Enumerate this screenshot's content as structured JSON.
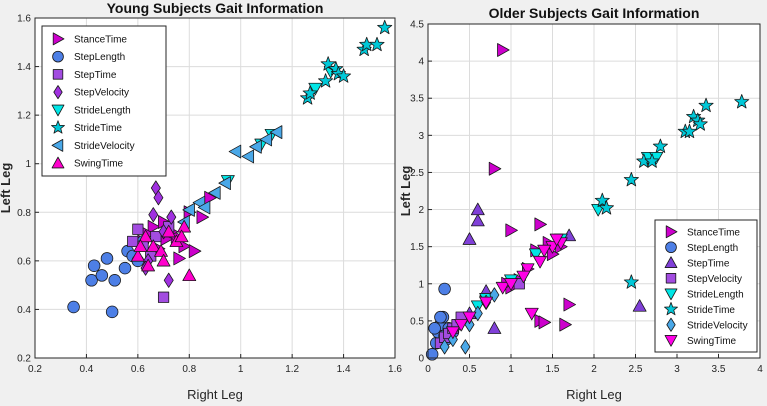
{
  "chart_data": [
    {
      "type": "scatter",
      "title": "Young Subjects Gait Information",
      "xlabel": "Right Leg",
      "ylabel": "Left Leg",
      "xlim": [
        0.2,
        1.6
      ],
      "ylim": [
        0.2,
        1.6
      ],
      "xticks": [
        "0.2",
        "0.4",
        "0.6",
        "0.8",
        "1",
        "1.2",
        "1.4",
        "1.6"
      ],
      "yticks": [
        "0.2",
        "0.4",
        "0.6",
        "0.8",
        "1",
        "1.2",
        "1.4",
        "1.6"
      ],
      "grid": true,
      "legend_position": "top-left",
      "series": [
        {
          "name": "StanceTime",
          "marker": "triangle-right",
          "color": "#cc00cc",
          "points": [
            [
              0.62,
              0.68
            ],
            [
              0.66,
              0.74
            ],
            [
              0.7,
              0.76
            ],
            [
              0.75,
              0.7
            ],
            [
              0.78,
              0.66
            ],
            [
              0.82,
              0.64
            ],
            [
              0.85,
              0.78
            ],
            [
              0.88,
              0.86
            ],
            [
              0.73,
              0.72
            ],
            [
              0.68,
              0.65
            ],
            [
              0.64,
              0.71
            ],
            [
              0.8,
              0.8
            ],
            [
              0.76,
              0.61
            ],
            [
              0.71,
              0.69
            ]
          ]
        },
        {
          "name": "StepLength",
          "marker": "circle",
          "color": "#4d7fe6",
          "points": [
            [
              0.35,
              0.41
            ],
            [
              0.42,
              0.52
            ],
            [
              0.43,
              0.58
            ],
            [
              0.46,
              0.54
            ],
            [
              0.48,
              0.61
            ],
            [
              0.5,
              0.39
            ],
            [
              0.51,
              0.52
            ],
            [
              0.55,
              0.57
            ],
            [
              0.56,
              0.64
            ],
            [
              0.58,
              0.62
            ],
            [
              0.6,
              0.6
            ],
            [
              0.62,
              0.68
            ]
          ]
        },
        {
          "name": "StepTime",
          "marker": "square",
          "color": "#a24ce0",
          "points": [
            [
              0.58,
              0.68
            ],
            [
              0.62,
              0.66
            ],
            [
              0.65,
              0.62
            ],
            [
              0.67,
              0.7
            ],
            [
              0.7,
              0.45
            ],
            [
              0.72,
              0.74
            ],
            [
              0.6,
              0.73
            ]
          ]
        },
        {
          "name": "StepVelocity",
          "marker": "diamond",
          "color": "#a030e0",
          "points": [
            [
              0.67,
              0.9
            ],
            [
              0.68,
              0.86
            ],
            [
              0.7,
              0.72
            ],
            [
              0.73,
              0.78
            ],
            [
              0.66,
              0.79
            ],
            [
              0.64,
              0.6
            ],
            [
              0.72,
              0.52
            ],
            [
              0.63,
              0.57
            ]
          ]
        },
        {
          "name": "StrideLength",
          "marker": "triangle-down",
          "color": "#00e6e6",
          "points": [
            [
              0.95,
              0.93
            ],
            [
              1.08,
              1.08
            ],
            [
              1.12,
              1.12
            ],
            [
              1.29,
              1.31
            ],
            [
              1.35,
              1.38
            ]
          ]
        },
        {
          "name": "StrideTime",
          "marker": "star",
          "color": "#00c8d8",
          "points": [
            [
              1.26,
              1.27
            ],
            [
              1.27,
              1.29
            ],
            [
              1.34,
              1.41
            ],
            [
              1.37,
              1.39
            ],
            [
              1.38,
              1.37
            ],
            [
              1.4,
              1.36
            ],
            [
              1.48,
              1.47
            ],
            [
              1.49,
              1.49
            ],
            [
              1.53,
              1.49
            ],
            [
              1.56,
              1.56
            ],
            [
              1.33,
              1.34
            ]
          ]
        },
        {
          "name": "StrideVelocity",
          "marker": "triangle-left",
          "color": "#4aa8e8",
          "points": [
            [
              0.8,
              0.81
            ],
            [
              0.84,
              0.84
            ],
            [
              0.9,
              0.88
            ],
            [
              0.94,
              0.92
            ],
            [
              0.98,
              1.05
            ],
            [
              1.03,
              1.03
            ],
            [
              1.06,
              1.07
            ],
            [
              1.1,
              1.1
            ],
            [
              1.14,
              1.13
            ],
            [
              0.86,
              0.82
            ],
            [
              0.78,
              0.76
            ]
          ]
        },
        {
          "name": "SwingTime",
          "marker": "triangle-up",
          "color": "#ff00cc",
          "points": [
            [
              0.6,
              0.62
            ],
            [
              0.63,
              0.7
            ],
            [
              0.66,
              0.66
            ],
            [
              0.69,
              0.64
            ],
            [
              0.72,
              0.72
            ],
            [
              0.75,
              0.68
            ],
            [
              0.78,
              0.74
            ],
            [
              0.8,
              0.54
            ],
            [
              0.64,
              0.58
            ],
            [
              0.7,
              0.6
            ],
            [
              0.61,
              0.66
            ],
            [
              0.77,
              0.7
            ]
          ]
        }
      ]
    },
    {
      "type": "scatter",
      "title": "Older Subjects Gait Information",
      "xlabel": "Right Leg",
      "ylabel": "Left Leg",
      "xlim": [
        0,
        4
      ],
      "ylim": [
        0,
        4.5
      ],
      "xticks": [
        "0",
        "0.5",
        "1",
        "1.5",
        "2",
        "2.5",
        "3",
        "3.5",
        "4"
      ],
      "yticks": [
        "0",
        "0.5",
        "1",
        "1.5",
        "2",
        "2.5",
        "3",
        "3.5",
        "4",
        "4.5"
      ],
      "grid": true,
      "legend_position": "bottom-right",
      "series": [
        {
          "name": "StanceTime",
          "marker": "triangle-right",
          "color": "#cc00cc",
          "points": [
            [
              0.9,
              4.15
            ],
            [
              0.8,
              2.55
            ],
            [
              1.0,
              1.72
            ],
            [
              1.35,
              1.8
            ],
            [
              1.3,
              1.45
            ],
            [
              1.1,
              1.05
            ],
            [
              1.0,
              0.95
            ],
            [
              1.35,
              0.5
            ],
            [
              1.4,
              0.48
            ],
            [
              1.65,
              0.45
            ],
            [
              1.7,
              0.72
            ],
            [
              1.6,
              1.5
            ],
            [
              1.5,
              1.4
            ],
            [
              1.2,
              1.2
            ],
            [
              1.45,
              1.55
            ],
            [
              0.95,
              1.0
            ]
          ]
        },
        {
          "name": "StepLength",
          "marker": "circle",
          "color": "#4d7fe6",
          "points": [
            [
              0.05,
              0.05
            ],
            [
              0.1,
              0.2
            ],
            [
              0.12,
              0.35
            ],
            [
              0.15,
              0.45
            ],
            [
              0.18,
              0.55
            ],
            [
              0.2,
              0.3
            ],
            [
              0.22,
              0.25
            ],
            [
              0.25,
              0.4
            ],
            [
              0.2,
              0.93
            ],
            [
              0.3,
              0.35
            ],
            [
              0.15,
              0.55
            ],
            [
              0.08,
              0.4
            ]
          ]
        },
        {
          "name": "StepTime",
          "marker": "triangle-up",
          "color": "#8040d8",
          "points": [
            [
              0.5,
              1.6
            ],
            [
              0.6,
              1.85
            ],
            [
              0.6,
              2.0
            ],
            [
              0.7,
              0.9
            ],
            [
              0.8,
              0.4
            ],
            [
              0.5,
              0.6
            ],
            [
              2.55,
              0.7
            ],
            [
              1.7,
              1.65
            ]
          ]
        },
        {
          "name": "StepVelocity",
          "marker": "square",
          "color": "#a24ce0",
          "points": [
            [
              0.15,
              0.2
            ],
            [
              0.2,
              0.28
            ],
            [
              0.25,
              0.33
            ],
            [
              0.3,
              0.4
            ],
            [
              0.35,
              0.45
            ],
            [
              0.4,
              0.55
            ],
            [
              1.1,
              1.0
            ]
          ]
        },
        {
          "name": "StrideLength",
          "marker": "triangle-down",
          "color": "#00e6e6",
          "points": [
            [
              0.6,
              0.7
            ],
            [
              0.7,
              0.8
            ],
            [
              1.0,
              1.05
            ],
            [
              1.3,
              1.4
            ],
            [
              1.6,
              1.6
            ],
            [
              2.05,
              2.0
            ],
            [
              2.65,
              2.7
            ],
            [
              2.75,
              2.7
            ]
          ]
        },
        {
          "name": "StrideTime",
          "marker": "star",
          "color": "#00c8d8",
          "points": [
            [
              2.1,
              2.12
            ],
            [
              2.15,
              2.02
            ],
            [
              2.45,
              2.4
            ],
            [
              2.6,
              2.65
            ],
            [
              2.7,
              2.65
            ],
            [
              2.8,
              2.85
            ],
            [
              3.1,
              3.05
            ],
            [
              3.15,
              3.05
            ],
            [
              3.2,
              3.25
            ],
            [
              3.25,
              3.2
            ],
            [
              3.28,
              3.15
            ],
            [
              3.35,
              3.4
            ],
            [
              3.78,
              3.45
            ],
            [
              2.45,
              1.02
            ]
          ]
        },
        {
          "name": "StrideVelocity",
          "marker": "diamond",
          "color": "#4aa8e8",
          "points": [
            [
              0.45,
              0.15
            ],
            [
              0.5,
              0.45
            ],
            [
              0.6,
              0.6
            ],
            [
              0.7,
              0.75
            ],
            [
              0.8,
              0.85
            ],
            [
              0.3,
              0.25
            ],
            [
              0.2,
              0.15
            ]
          ]
        },
        {
          "name": "SwingTime",
          "marker": "triangle-down",
          "color": "#ff00e6",
          "points": [
            [
              0.3,
              0.35
            ],
            [
              0.4,
              0.45
            ],
            [
              0.5,
              0.55
            ],
            [
              0.7,
              0.75
            ],
            [
              0.9,
              0.95
            ],
            [
              1.0,
              1.0
            ],
            [
              1.2,
              1.2
            ],
            [
              1.35,
              1.3
            ],
            [
              1.5,
              1.5
            ],
            [
              1.6,
              1.55
            ],
            [
              1.25,
              0.6
            ],
            [
              1.4,
              1.45
            ],
            [
              1.55,
              1.6
            ],
            [
              1.15,
              1.1
            ]
          ]
        }
      ]
    }
  ]
}
